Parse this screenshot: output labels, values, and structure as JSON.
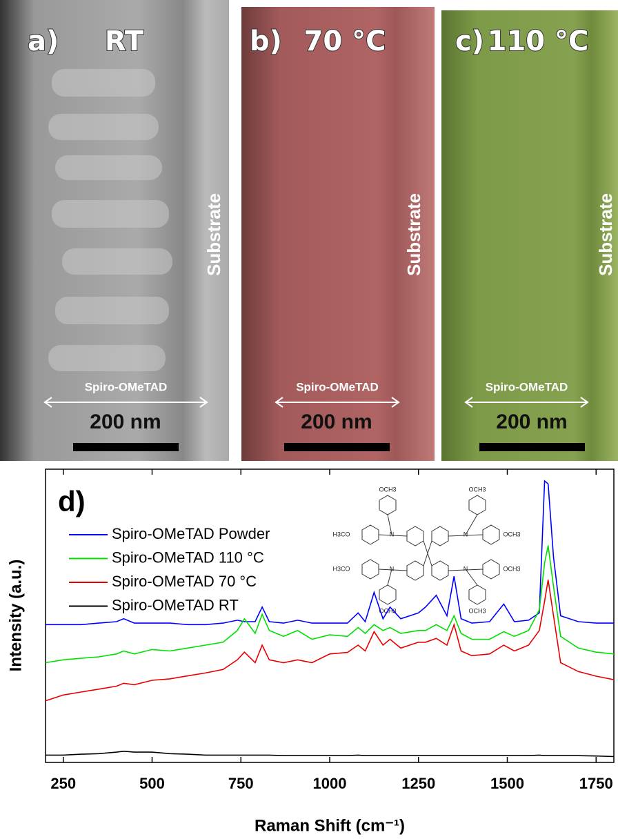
{
  "panels": [
    {
      "label": "a)",
      "title": "RT",
      "substrate": "Substrate",
      "layer": "Spiro-OMeTAD",
      "scale": "200 nm"
    },
    {
      "label": "b)",
      "title": "70 °C",
      "substrate": "Substrate",
      "layer": "Spiro-OMeTAD",
      "scale": "200 nm"
    },
    {
      "label": "c)",
      "title": "110 °C",
      "substrate": "Substrate",
      "layer": "Spiro-OMeTAD",
      "scale": "200 nm"
    }
  ],
  "molecule": {
    "methoxy": [
      "OCH3",
      "OCH3",
      "H3CO",
      "OCH3",
      "H3CO",
      "OCH3",
      "OCH3",
      "OCH3"
    ],
    "nitrogen": [
      "N",
      "N",
      "N",
      "N"
    ]
  },
  "chart_data": {
    "type": "line",
    "panel_label": "d)",
    "x_label": "Raman Shift (cm⁻¹)",
    "y_label": "Intensity (a.u.)",
    "xlim": [
      200,
      1800
    ],
    "xticks": [
      250,
      500,
      750,
      1000,
      1250,
      1500,
      1750
    ],
    "ylim": [
      0,
      100
    ],
    "legend": "upper left",
    "x": [
      200,
      250,
      300,
      350,
      400,
      420,
      450,
      500,
      550,
      600,
      650,
      700,
      740,
      760,
      790,
      810,
      830,
      870,
      910,
      950,
      1000,
      1050,
      1080,
      1100,
      1125,
      1150,
      1170,
      1200,
      1250,
      1270,
      1300,
      1330,
      1350,
      1370,
      1400,
      1450,
      1490,
      1520,
      1560,
      1590,
      1605,
      1615,
      1630,
      1650,
      1700,
      1750,
      1800
    ],
    "series": [
      {
        "name": "Spiro-OMeTAD Powder",
        "color": "#0000ff",
        "values": [
          47,
          47,
          47,
          47.5,
          48,
          49,
          47.5,
          47.5,
          47.5,
          47,
          47,
          47.5,
          48.5,
          48,
          48,
          53,
          48,
          47.5,
          48.5,
          47.5,
          47.5,
          47.5,
          51,
          48,
          58,
          49,
          53,
          49,
          51,
          53,
          57,
          50,
          63.5,
          49,
          47.5,
          48,
          54,
          48,
          48.5,
          51,
          96,
          95,
          70,
          50,
          48,
          47.5,
          47.5
        ]
      },
      {
        "name": "Spiro-OMeTAD 110 °C",
        "color": "#00e000",
        "values": [
          34,
          35,
          35.5,
          36,
          37,
          38,
          37,
          38.5,
          38,
          39,
          40,
          41,
          45,
          49,
          44,
          50.5,
          45,
          43,
          45,
          42,
          43.5,
          43,
          46,
          44,
          47,
          45,
          46,
          44,
          45,
          45,
          47,
          45,
          50,
          44,
          42,
          42,
          44.6,
          43,
          45,
          52,
          68,
          74,
          60,
          43,
          39,
          37.6,
          37
        ]
      },
      {
        "name": "Spiro-OMeTAD 70 °C",
        "color": "#e80000",
        "values": [
          21,
          23,
          24,
          25,
          26,
          27,
          26.5,
          28,
          28.5,
          29.5,
          30.5,
          31.7,
          35,
          37.6,
          34,
          40,
          35,
          34,
          35,
          34,
          37,
          37.5,
          40,
          38,
          44.6,
          40,
          42,
          39,
          41,
          41,
          42.3,
          40,
          47,
          38,
          36.4,
          37,
          40,
          38,
          40,
          45,
          55,
          62.3,
          50,
          34,
          31,
          29.4,
          28.2
        ]
      },
      {
        "name": "Spiro-OMeTAD RT",
        "color": "#000000",
        "values": [
          2.5,
          2.5,
          2.8,
          3,
          3.5,
          3.8,
          3.5,
          3.5,
          3,
          2.8,
          2.5,
          2.5,
          2.5,
          2.5,
          2.5,
          2.5,
          2.5,
          2.3,
          2.3,
          2.3,
          2.3,
          2.3,
          2.5,
          2.3,
          2.3,
          2.3,
          2.3,
          2.3,
          2.3,
          2.3,
          2.3,
          2.3,
          2.3,
          2.3,
          2.3,
          2.3,
          2.3,
          2.3,
          2.3,
          2.5,
          2.3,
          2.3,
          2.3,
          2.3,
          2.3,
          2.2,
          2
        ]
      }
    ]
  }
}
